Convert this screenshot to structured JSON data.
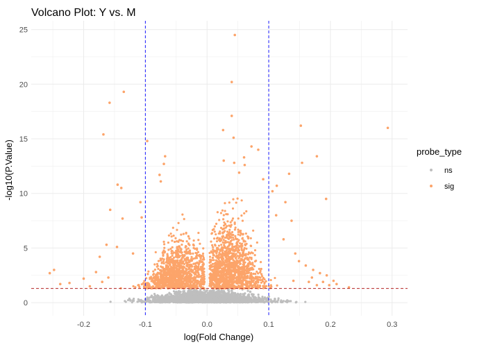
{
  "chart_data": {
    "type": "scatter",
    "title": "Volcano Plot: Y vs. M",
    "xlabel": "log(Fold Change)",
    "ylabel": "-log10(P.Value)",
    "xlim": [
      -0.285,
      0.325
    ],
    "ylim": [
      -1.2,
      25.8
    ],
    "x_ticks": [
      -0.2,
      -0.1,
      0.0,
      0.1,
      0.2,
      0.3
    ],
    "x_tick_labels": [
      "-0.2",
      "-0.1",
      "0.0",
      "0.1",
      "0.2",
      "0.3"
    ],
    "y_ticks": [
      0,
      5,
      10,
      15,
      20,
      25
    ],
    "y_tick_labels": [
      "0",
      "5",
      "10",
      "15",
      "20",
      "25"
    ],
    "grid": true,
    "reference_lines": [
      {
        "orientation": "vertical",
        "value": -0.1,
        "color": "#1a1aff",
        "style": "dashed"
      },
      {
        "orientation": "vertical",
        "value": 0.1,
        "color": "#1a1aff",
        "style": "dashed"
      },
      {
        "orientation": "horizontal",
        "value": 1.3,
        "color": "#b22222",
        "style": "dashed"
      }
    ],
    "legend": {
      "title": "probe_type",
      "position": "right",
      "entries": [
        {
          "label": "ns",
          "color": "#bebebe"
        },
        {
          "label": "sig",
          "color": "#fca46a"
        }
      ]
    },
    "series": [
      {
        "name": "ns",
        "color": "#bebebe",
        "points": [
          [
            -0.08,
            0.5
          ],
          [
            -0.06,
            0.8
          ],
          [
            -0.05,
            1.0
          ],
          [
            -0.04,
            0.6
          ],
          [
            -0.03,
            1.1
          ],
          [
            -0.02,
            0.4
          ],
          [
            -0.01,
            0.9
          ],
          [
            0.0,
            0.2
          ],
          [
            0.01,
            0.7
          ],
          [
            0.02,
            1.0
          ],
          [
            0.03,
            0.5
          ],
          [
            0.04,
            1.1
          ],
          [
            0.05,
            0.8
          ],
          [
            0.06,
            0.6
          ],
          [
            0.07,
            1.0
          ],
          [
            0.09,
            0.4
          ],
          [
            -0.1,
            0.3
          ],
          [
            -0.12,
            0.2
          ],
          [
            0.11,
            0.3
          ],
          [
            0.13,
            0.2
          ],
          [
            0.0,
            0.05
          ],
          [
            -0.015,
            0.1
          ],
          [
            0.015,
            0.1
          ]
        ]
      },
      {
        "name": "sig",
        "color": "#fca46a",
        "points": [
          [
            0.045,
            24.5
          ],
          [
            0.04,
            20.2
          ],
          [
            0.293,
            16.0
          ],
          [
            -0.135,
            19.3
          ],
          [
            -0.158,
            18.3
          ],
          [
            0.04,
            17.1
          ],
          [
            -0.168,
            15.4
          ],
          [
            0.152,
            16.2
          ],
          [
            0.026,
            15.8
          ],
          [
            0.043,
            15.1
          ],
          [
            -0.097,
            14.8
          ],
          [
            0.072,
            14.3
          ],
          [
            0.083,
            14.0
          ],
          [
            0.06,
            13.3
          ],
          [
            0.027,
            13.0
          ],
          [
            0.044,
            12.8
          ],
          [
            0.061,
            12.6
          ],
          [
            0.052,
            11.9
          ],
          [
            0.091,
            11.3
          ],
          [
            -0.068,
            13.4
          ],
          [
            -0.07,
            12.7
          ],
          [
            -0.077,
            11.7
          ],
          [
            -0.075,
            11.1
          ],
          [
            0.178,
            13.4
          ],
          [
            0.154,
            12.8
          ],
          [
            0.133,
            11.8
          ],
          [
            -0.145,
            10.8
          ],
          [
            -0.139,
            10.5
          ],
          [
            -0.157,
            8.5
          ],
          [
            -0.137,
            7.7
          ],
          [
            -0.108,
            9.2
          ],
          [
            -0.106,
            7.8
          ],
          [
            0.113,
            10.7
          ],
          [
            0.106,
            10.2
          ],
          [
            0.127,
            9.2
          ],
          [
            0.193,
            9.5
          ],
          [
            0.137,
            7.5
          ],
          [
            0.112,
            8.0
          ],
          [
            -0.163,
            5.3
          ],
          [
            -0.174,
            4.2
          ],
          [
            -0.146,
            5.1
          ],
          [
            -0.12,
            4.5
          ],
          [
            0.124,
            5.8
          ],
          [
            0.143,
            4.5
          ],
          [
            0.149,
            3.8
          ],
          [
            0.16,
            3.4
          ],
          [
            0.172,
            3.0
          ],
          [
            0.183,
            2.7
          ],
          [
            0.194,
            2.5
          ],
          [
            0.205,
            2.0
          ],
          [
            -0.255,
            2.7
          ],
          [
            -0.248,
            3.0
          ],
          [
            -0.238,
            1.7
          ],
          [
            -0.223,
            1.8
          ],
          [
            -0.2,
            2.2
          ],
          [
            -0.19,
            1.5
          ],
          [
            -0.18,
            2.8
          ],
          [
            -0.17,
            1.9
          ],
          [
            -0.16,
            2.3
          ],
          [
            0.14,
            2.0
          ],
          [
            0.165,
            1.9
          ],
          [
            0.178,
            1.6
          ],
          [
            0.188,
            1.9
          ],
          [
            0.198,
            1.6
          ],
          [
            0.21,
            1.7
          ],
          [
            0.23,
            1.4
          ],
          [
            0.17,
            2.3
          ]
        ]
      }
    ]
  }
}
